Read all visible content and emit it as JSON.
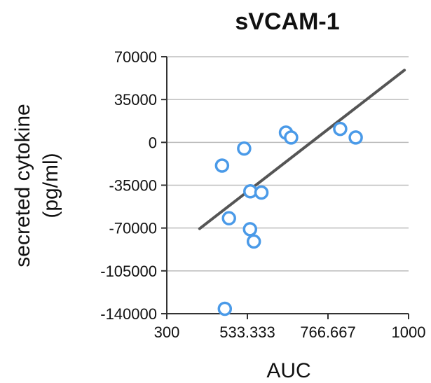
{
  "chart_data": {
    "type": "scatter",
    "title": "sVCAM-1",
    "xlabel": "AUC",
    "ylabel_line1": "secreted cytokine",
    "ylabel_line2": "(pg/ml)",
    "xlim": [
      300,
      1000
    ],
    "ylim": [
      -140000,
      70000
    ],
    "x_ticks": [
      300,
      533.333,
      766.667,
      1000
    ],
    "x_tick_labels": [
      "300",
      "533.333",
      "766.667",
      "1000"
    ],
    "y_ticks": [
      70000,
      35000,
      0,
      -35000,
      -70000,
      -105000,
      -140000
    ],
    "y_tick_labels": [
      "70000",
      "35000",
      "0",
      "-35000",
      "-70000",
      "-105000",
      "-140000"
    ],
    "grid": true,
    "points": [
      {
        "x": 460,
        "y": -19000
      },
      {
        "x": 480,
        "y": -62000
      },
      {
        "x": 468,
        "y": -136000
      },
      {
        "x": 524,
        "y": -5000
      },
      {
        "x": 542,
        "y": -40000
      },
      {
        "x": 541,
        "y": -71000
      },
      {
        "x": 552,
        "y": -81000
      },
      {
        "x": 574,
        "y": -41000
      },
      {
        "x": 645,
        "y": 8000
      },
      {
        "x": 660,
        "y": 4000
      },
      {
        "x": 802,
        "y": 11000
      },
      {
        "x": 847,
        "y": 4000
      }
    ],
    "trendline": {
      "x": [
        395,
        988
      ],
      "y": [
        -70500,
        59000
      ]
    },
    "colors": {
      "marker": "#4a9ae8",
      "trendline": "#555555",
      "grid": "#bdbdbd",
      "axis": "#333333"
    }
  }
}
